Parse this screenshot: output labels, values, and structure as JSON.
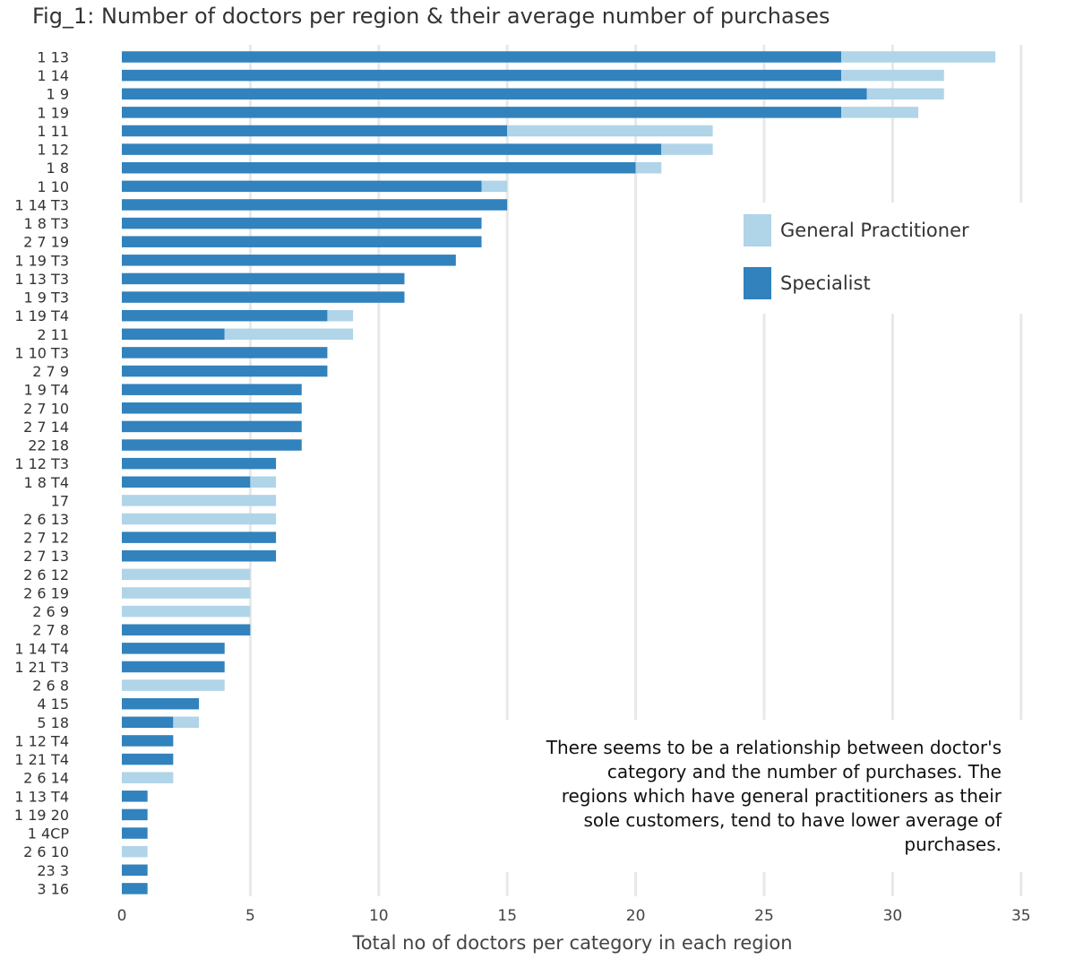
{
  "chart_data": {
    "type": "bar",
    "stacked": true,
    "orientation": "horizontal",
    "title": "Fig_1: Number of doctors per region & their average number of purchases",
    "xlabel": "Total no of doctors per category in each region",
    "ylabel": "",
    "xlim": [
      0,
      35
    ],
    "xticks": [
      "0",
      "5",
      "10",
      "15",
      "20",
      "25",
      "30",
      "35"
    ],
    "grid": "vertical",
    "legend_position": "right",
    "categories": [
      "1 13",
      "1 14",
      "1 9",
      "1 19",
      "1 11",
      "1 12",
      "1 8",
      "1 10",
      "1 14 T3",
      "1 8 T3",
      "2 7 19",
      "1 19 T3",
      "1 13 T3",
      "1 9 T3",
      "1 19 T4",
      "2 11",
      "1 10 T3",
      "2 7 9",
      "1 9 T4",
      "2 7 10",
      "2 7 14",
      "22 18",
      "1 12 T3",
      "1 8 T4",
      "17",
      "2 6 13",
      "2 7 12",
      "2 7 13",
      "2 6 12",
      "2 6 19",
      "2 6 9",
      "2 7 8",
      "1 14 T4",
      "1 21 T3",
      "2 6 8",
      "4 15",
      "5 18",
      "1 12 T4",
      "1 21 T4",
      "2 6 14",
      "1 13 T4",
      "1 19 20",
      "1 4CP",
      "2 6 10",
      "23 3",
      "3 16"
    ],
    "series": [
      {
        "name": "Specialist",
        "color": "#3182bd",
        "values": [
          28,
          28,
          29,
          28,
          15,
          21,
          20,
          14,
          15,
          14,
          14,
          13,
          11,
          11,
          8,
          4,
          8,
          8,
          7,
          7,
          7,
          7,
          6,
          5,
          0,
          0,
          6,
          6,
          0,
          0,
          0,
          5,
          4,
          4,
          0,
          3,
          2,
          2,
          2,
          0,
          1,
          1,
          1,
          0,
          1,
          1
        ]
      },
      {
        "name": "General Practitioner",
        "color": "#b0d4e8",
        "values": [
          6,
          4,
          3,
          3,
          8,
          2,
          1,
          1,
          0,
          0,
          0,
          0,
          0,
          0,
          1,
          5,
          0,
          0,
          0,
          0,
          0,
          0,
          0,
          1,
          6,
          6,
          0,
          0,
          5,
          5,
          5,
          0,
          0,
          0,
          4,
          0,
          1,
          0,
          0,
          2,
          0,
          0,
          0,
          1,
          0,
          0
        ]
      }
    ],
    "legend": [
      "General Practitioner",
      "Specialist"
    ],
    "annotation": [
      "There seems to be a relationship between doctor's",
      "category and the number of purchases. The",
      "regions which have general practitioners as their",
      "sole customers, tend to have lower average of",
      "purchases."
    ]
  }
}
